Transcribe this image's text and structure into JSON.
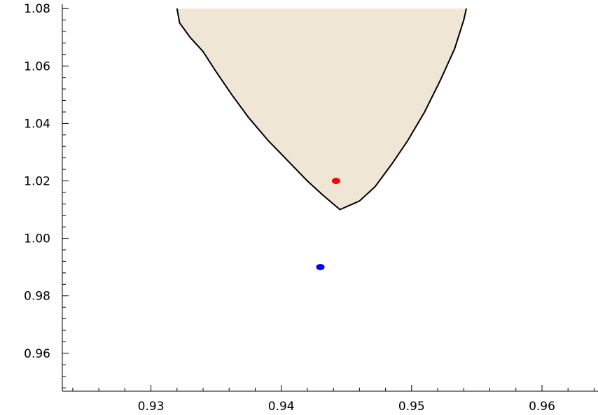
{
  "chart_data": {
    "type": "scatter",
    "title": "",
    "xlabel": "",
    "ylabel": "",
    "xlim": [
      0.9232,
      0.9643
    ],
    "ylim": [
      0.9468,
      1.0815
    ],
    "grid": false,
    "x_ticks": [
      0.93,
      0.94,
      0.95,
      0.96
    ],
    "x_tick_labels": [
      "0.93",
      "0.94",
      "0.95",
      "0.96"
    ],
    "y_ticks": [
      0.96,
      0.98,
      1.0,
      1.02,
      1.04,
      1.06,
      1.08
    ],
    "y_tick_labels": [
      "0.96",
      "0.98",
      "1.00",
      "1.02",
      "1.04",
      "1.06",
      "1.08"
    ],
    "region": {
      "fill_color": "#f0e6d6",
      "edge_color": "#000000",
      "boundary": [
        [
          0.932,
          1.08
        ],
        [
          0.9322,
          1.075
        ],
        [
          0.933,
          1.07
        ],
        [
          0.934,
          1.065
        ],
        [
          0.935,
          1.058
        ],
        [
          0.9362,
          1.05
        ],
        [
          0.9375,
          1.042
        ],
        [
          0.939,
          1.034
        ],
        [
          0.9405,
          1.027
        ],
        [
          0.942,
          1.02
        ],
        [
          0.9432,
          1.015
        ],
        [
          0.9445,
          1.01
        ],
        [
          0.946,
          1.013
        ],
        [
          0.9472,
          1.018
        ],
        [
          0.9485,
          1.026
        ],
        [
          0.9497,
          1.034
        ],
        [
          0.951,
          1.044
        ],
        [
          0.9522,
          1.055
        ],
        [
          0.9533,
          1.066
        ],
        [
          0.954,
          1.076
        ],
        [
          0.9542,
          1.08
        ]
      ]
    },
    "points": [
      {
        "x": 0.9442,
        "y": 1.02,
        "color": "#ff0000"
      },
      {
        "x": 0.943,
        "y": 0.99,
        "color": "#0000ff"
      }
    ]
  }
}
